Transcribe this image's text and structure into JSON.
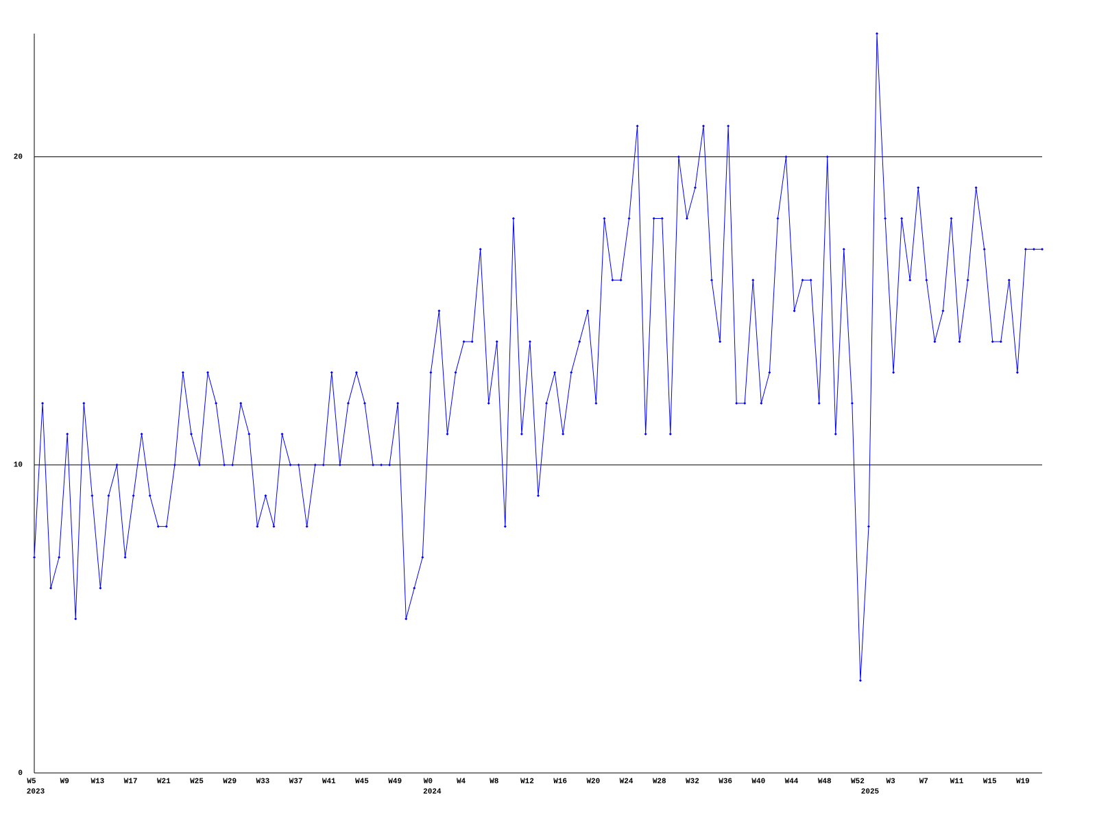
{
  "chart_data": {
    "type": "line",
    "categories": [
      "W5",
      null,
      null,
      null,
      "W9",
      null,
      null,
      null,
      "W13",
      null,
      null,
      null,
      "W17",
      null,
      null,
      null,
      "W21",
      null,
      null,
      null,
      "W25",
      null,
      null,
      null,
      "W29",
      null,
      null,
      null,
      "W33",
      null,
      null,
      null,
      "W37",
      null,
      null,
      null,
      "W41",
      null,
      null,
      null,
      "W45",
      null,
      null,
      null,
      "W49",
      null,
      null,
      null,
      "W0",
      null,
      null,
      null,
      "W4",
      null,
      null,
      null,
      "W8",
      null,
      null,
      null,
      "W12",
      null,
      null,
      null,
      "W16",
      null,
      null,
      null,
      "W20",
      null,
      null,
      null,
      "W24",
      null,
      null,
      null,
      "W28",
      null,
      null,
      null,
      "W32",
      null,
      null,
      null,
      "W36",
      null,
      null,
      null,
      "W40",
      null,
      null,
      null,
      "W44",
      null,
      null,
      null,
      "W48",
      null,
      null,
      null,
      "W52",
      null,
      null,
      null,
      "W3",
      null,
      null,
      null,
      "W7",
      null,
      null,
      null,
      "W11",
      null,
      null,
      null,
      "W15",
      null,
      null,
      null,
      "W19",
      null,
      null
    ],
    "category_years": [
      "2023",
      null,
      null,
      null,
      null,
      null,
      null,
      null,
      null,
      null,
      null,
      null,
      null,
      null,
      null,
      null,
      null,
      null,
      null,
      null,
      null,
      null,
      null,
      null,
      null,
      null,
      null,
      null,
      null,
      null,
      null,
      null,
      null,
      null,
      null,
      null,
      null,
      null,
      null,
      null,
      null,
      null,
      null,
      null,
      null,
      null,
      null,
      null,
      "2024",
      null,
      null,
      null,
      null,
      null,
      null,
      null,
      null,
      null,
      null,
      null,
      null,
      null,
      null,
      null,
      null,
      null,
      null,
      null,
      null,
      null,
      null,
      null,
      null,
      null,
      null,
      null,
      null,
      null,
      null,
      null,
      null,
      null,
      null,
      null,
      null,
      null,
      null,
      null,
      null,
      null,
      null,
      null,
      null,
      null,
      null,
      null,
      null,
      null,
      null,
      null,
      null,
      "2025",
      null,
      null,
      null,
      null,
      null,
      null,
      null,
      null,
      null,
      null,
      null,
      null,
      null,
      null,
      null,
      null,
      null,
      null,
      null,
      null,
      null
    ],
    "series": [
      {
        "name": null,
        "color": "#0000ff",
        "values": [
          7,
          12,
          6,
          7,
          11,
          5,
          12,
          9,
          6,
          9,
          10,
          7,
          9,
          11,
          9,
          8,
          8,
          10,
          13,
          11,
          10,
          13,
          12,
          10,
          10,
          12,
          11,
          8,
          9,
          8,
          11,
          10,
          10,
          8,
          10,
          10,
          13,
          10,
          12,
          13,
          12,
          10,
          10,
          10,
          12,
          5,
          6,
          7,
          13,
          15,
          11,
          13,
          14,
          14,
          17,
          12,
          14,
          8,
          18,
          11,
          14,
          9,
          12,
          13,
          11,
          13,
          14,
          15,
          12,
          18,
          16,
          16,
          18,
          21,
          11,
          18,
          18,
          11,
          20,
          18,
          19,
          21,
          16,
          14,
          21,
          12,
          12,
          16,
          12,
          13,
          18,
          20,
          15,
          16,
          16,
          12,
          20,
          11,
          17,
          12,
          3,
          8,
          24,
          18,
          13,
          18,
          16,
          19,
          16,
          14,
          15,
          18,
          14,
          16,
          19,
          17,
          14,
          14,
          16,
          13,
          17,
          17,
          17
        ]
      }
    ],
    "ylim": [
      0,
      24
    ],
    "yticks": [
      0,
      10,
      20
    ],
    "grid": true
  }
}
